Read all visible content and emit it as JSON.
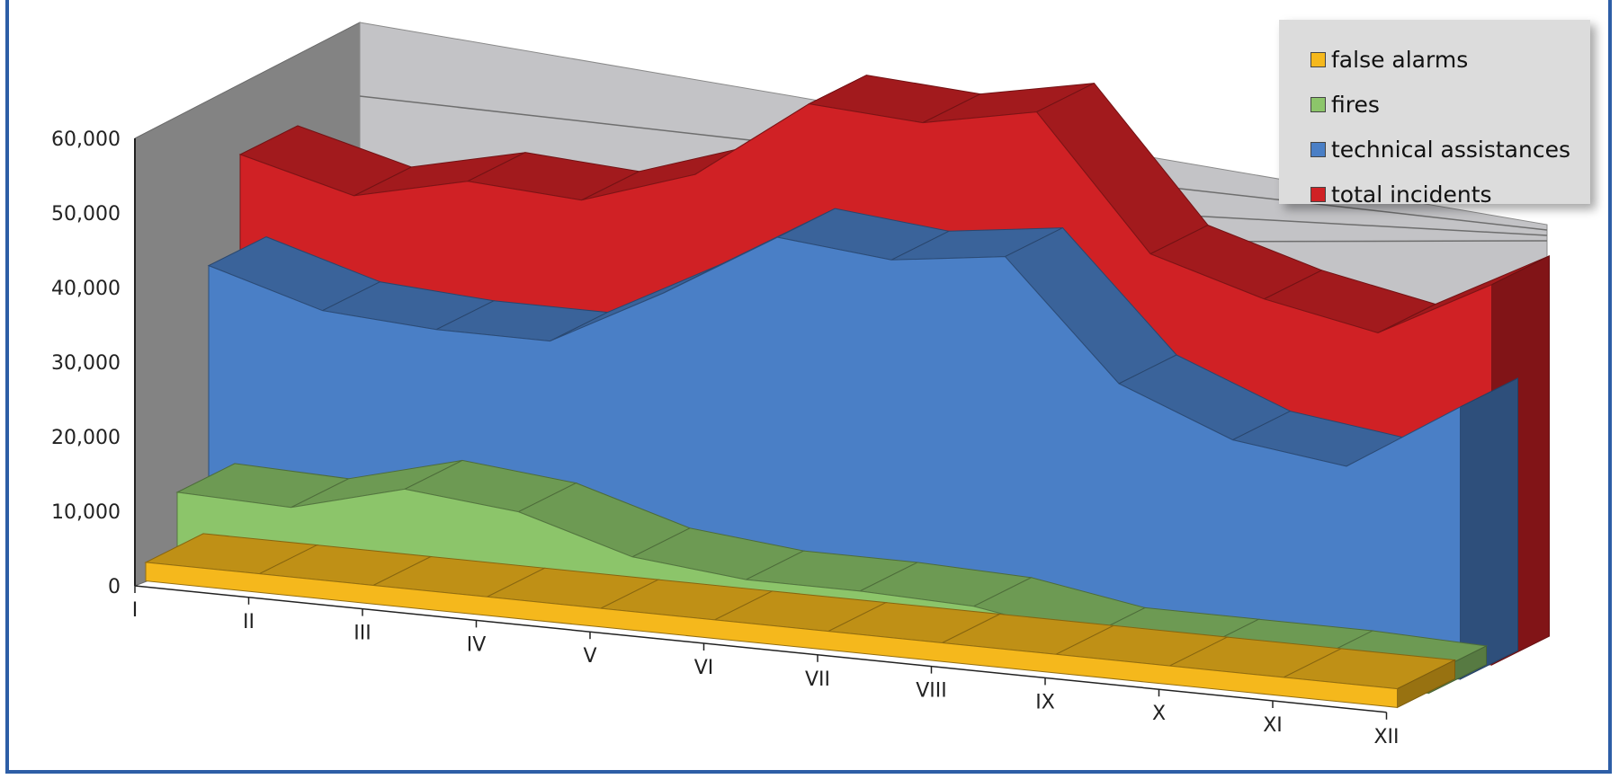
{
  "chart_data": {
    "type": "area",
    "render": "3d-area",
    "title": "",
    "xlabel": "",
    "ylabel": "",
    "ylim": [
      0,
      60000
    ],
    "y_ticks": [
      "0",
      "10,000",
      "20,000",
      "30,000",
      "40,000",
      "50,000",
      "60,000"
    ],
    "categories": [
      "I",
      "II",
      "III",
      "IV",
      "V",
      "VI",
      "VII",
      "VIII",
      "IX",
      "X",
      "XI",
      "XII"
    ],
    "legend_position": "top-right",
    "series": [
      {
        "name": "false alarms",
        "color": "#f5b81c",
        "values": [
          2500,
          2500,
          2500,
          2500,
          2500,
          2500,
          2500,
          2500,
          2500,
          2500,
          2500,
          2500
        ]
      },
      {
        "name": "fires",
        "color": "#8cc56a",
        "values": [
          10000,
          9500,
          13500,
          12000,
          7500,
          6000,
          6000,
          5500,
          3000,
          3000,
          3000,
          2500
        ]
      },
      {
        "name": "technical assistances",
        "color": "#4a7fc6",
        "values": [
          38500,
          34000,
          33000,
          33000,
          41000,
          50000,
          48500,
          50500,
          35000,
          29000,
          27000,
          36500
        ]
      },
      {
        "name": "total incidents",
        "color": "#d02125",
        "values": [
          51500,
          47500,
          51000,
          50000,
          55000,
          66000,
          65000,
          68000,
          50500,
          46000,
          43000,
          51000
        ]
      }
    ]
  }
}
